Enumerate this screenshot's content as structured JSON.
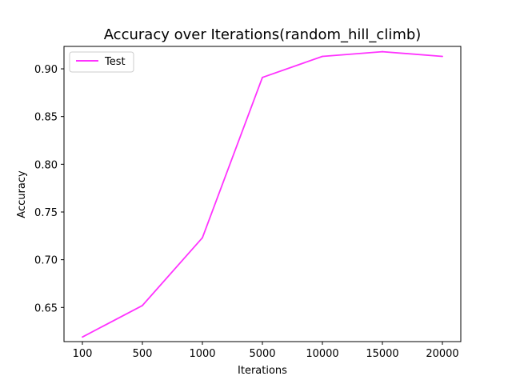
{
  "chart_data": {
    "type": "line",
    "title": "Accuracy over Iterations(random_hill_climb)",
    "xlabel": "Iterations",
    "ylabel": "Accuracy",
    "categories": [
      "100",
      "500",
      "1000",
      "5000",
      "10000",
      "15000",
      "20000"
    ],
    "series": [
      {
        "name": "Test",
        "color": "#ff33ff",
        "values": [
          0.619,
          0.652,
          0.723,
          0.891,
          0.913,
          0.918,
          0.913
        ]
      }
    ],
    "ylim": [
      0.6142,
      0.9235
    ],
    "yticks": [
      0.65,
      0.7,
      0.75,
      0.8,
      0.85,
      0.9
    ],
    "ytick_labels": [
      "0.65",
      "0.70",
      "0.75",
      "0.80",
      "0.85",
      "0.90"
    ],
    "grid": false,
    "legend": "top-left"
  }
}
